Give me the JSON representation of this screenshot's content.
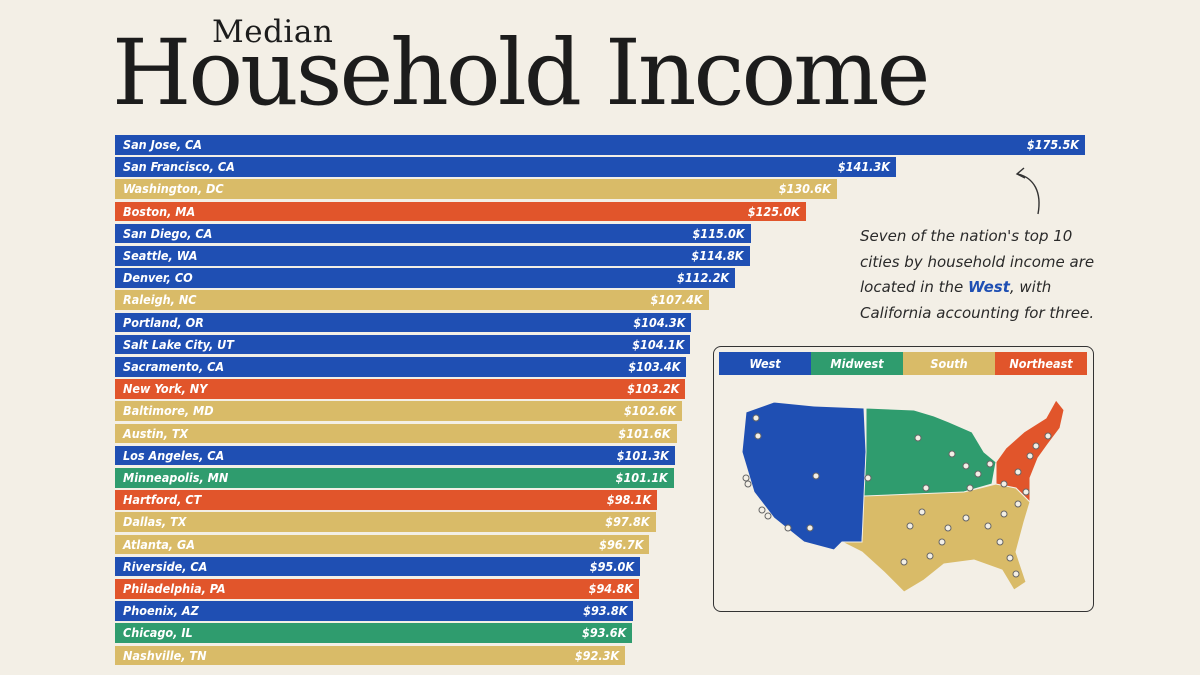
{
  "header": {
    "title_small": "Median",
    "title_big": "Household Income"
  },
  "colors": {
    "West": "#1f4fb3",
    "Midwest": "#2f9c6e",
    "South": "#d9bb68",
    "Northeast": "#e1552b",
    "text_dark": "#1c1c1c"
  },
  "annotation": {
    "text_before": "Seven of the nation's top 10 cities by household income are located in the ",
    "highlight": "West",
    "text_after": ", with California accounting for three."
  },
  "legend": [
    {
      "label": "West",
      "region": "West"
    },
    {
      "label": "Midwest",
      "region": "Midwest"
    },
    {
      "label": "South",
      "region": "South"
    },
    {
      "label": "Northeast",
      "region": "Northeast"
    }
  ],
  "chart_data": {
    "type": "bar",
    "orientation": "horizontal",
    "unit": "$K",
    "categories": [
      "San Jose, CA",
      "San Francisco, CA",
      "Washington, DC",
      "Boston, MA",
      "San Diego, CA",
      "Seattle, WA",
      "Denver, CO",
      "Raleigh, NC",
      "Portland, OR",
      "Salt Lake City, UT",
      "Sacramento, CA",
      "New York, NY",
      "Baltimore, MD",
      "Austin, TX",
      "Los Angeles, CA",
      "Minneapolis, MN",
      "Hartford, CT",
      "Dallas, TX",
      "Atlanta, GA",
      "Riverside, CA",
      "Philadelphia, PA",
      "Phoenix, AZ",
      "Chicago, IL",
      "Nashville, TN"
    ],
    "values": [
      175.5,
      141.3,
      130.6,
      125.0,
      115.0,
      114.8,
      112.2,
      107.4,
      104.3,
      104.1,
      103.4,
      103.2,
      102.6,
      101.6,
      101.3,
      101.1,
      98.1,
      97.8,
      96.7,
      95.0,
      94.8,
      93.8,
      93.6,
      92.3
    ],
    "value_labels": [
      "$175.5K",
      "$141.3K",
      "$130.6K",
      "$125.0K",
      "$115.0K",
      "$114.8K",
      "$112.2K",
      "$107.4K",
      "$104.3K",
      "$104.1K",
      "$103.4K",
      "$103.2K",
      "$102.6K",
      "$101.6K",
      "$101.3K",
      "$101.1K",
      "$98.1K",
      "$97.8K",
      "$96.7K",
      "$95.0K",
      "$94.8K",
      "$93.8K",
      "$93.6K",
      "$92.3K"
    ],
    "regions": [
      "West",
      "West",
      "South",
      "Northeast",
      "West",
      "West",
      "West",
      "South",
      "West",
      "West",
      "West",
      "Northeast",
      "South",
      "South",
      "West",
      "Midwest",
      "Northeast",
      "South",
      "South",
      "West",
      "Northeast",
      "West",
      "Midwest",
      "South"
    ],
    "xlim": [
      0,
      175.5
    ]
  }
}
